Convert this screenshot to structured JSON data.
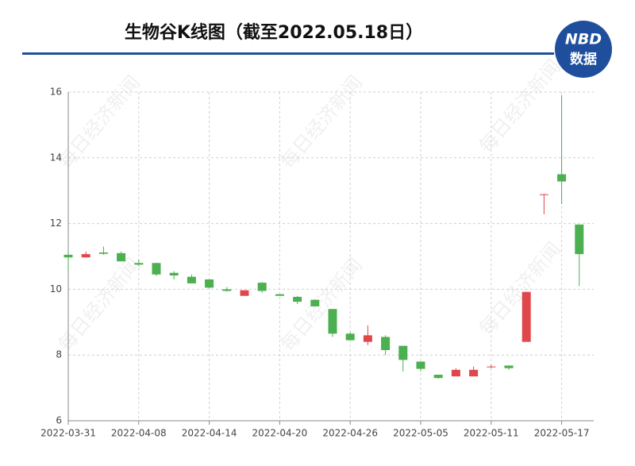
{
  "chart_data": {
    "type": "candlestick",
    "title": "生物谷K线图（截至2022.05.18日）",
    "logo": {
      "top": "NBD",
      "bottom": "数据"
    },
    "watermark": "每日经济新闻",
    "categories": [
      "2022-03-31",
      null,
      null,
      null,
      "2022-04-08",
      null,
      null,
      null,
      "2022-04-14",
      null,
      null,
      null,
      "2022-04-20",
      null,
      null,
      null,
      "2022-04-26",
      null,
      null,
      null,
      "2022-05-05",
      null,
      null,
      null,
      "2022-05-11",
      null,
      null,
      null,
      "2022-05-17",
      null
    ],
    "open": [
      11.05,
      10.97,
      11.12,
      11.1,
      10.8,
      10.8,
      10.5,
      10.38,
      10.3,
      10.0,
      9.8,
      10.2,
      9.85,
      9.77,
      9.68,
      9.4,
      8.65,
      8.4,
      8.55,
      8.28,
      7.8,
      7.4,
      7.35,
      7.35,
      7.63,
      7.68,
      8.4,
      12.87,
      13.5,
      11.97
    ],
    "high": [
      11.2,
      11.15,
      11.3,
      11.15,
      10.9,
      10.8,
      10.55,
      10.45,
      10.3,
      10.07,
      9.97,
      10.22,
      9.85,
      9.8,
      9.7,
      9.4,
      8.7,
      8.9,
      8.6,
      8.28,
      7.8,
      7.4,
      7.6,
      7.65,
      7.7,
      7.68,
      9.92,
      12.9,
      15.9,
      11.97
    ],
    "low": [
      10.5,
      10.97,
      11.05,
      10.85,
      10.72,
      10.4,
      10.3,
      10.18,
      10.03,
      9.93,
      9.8,
      9.9,
      9.8,
      9.55,
      9.48,
      8.55,
      8.45,
      8.3,
      8.0,
      7.5,
      7.5,
      7.28,
      7.35,
      7.35,
      7.6,
      7.55,
      8.4,
      12.28,
      12.6,
      10.1
    ],
    "close": [
      10.97,
      11.07,
      11.08,
      10.85,
      10.75,
      10.45,
      10.42,
      10.18,
      10.05,
      9.95,
      9.97,
      9.95,
      9.8,
      9.62,
      9.48,
      8.65,
      8.45,
      8.6,
      8.15,
      7.85,
      7.58,
      7.3,
      7.55,
      7.55,
      7.65,
      7.6,
      9.92,
      12.89,
      13.28,
      11.07
    ],
    "up_color": "#e0474c",
    "down_color": "#4caf50",
    "ylim": [
      6,
      16
    ],
    "yticks": [
      6,
      8,
      10,
      12,
      14,
      16
    ],
    "grid": true
  }
}
